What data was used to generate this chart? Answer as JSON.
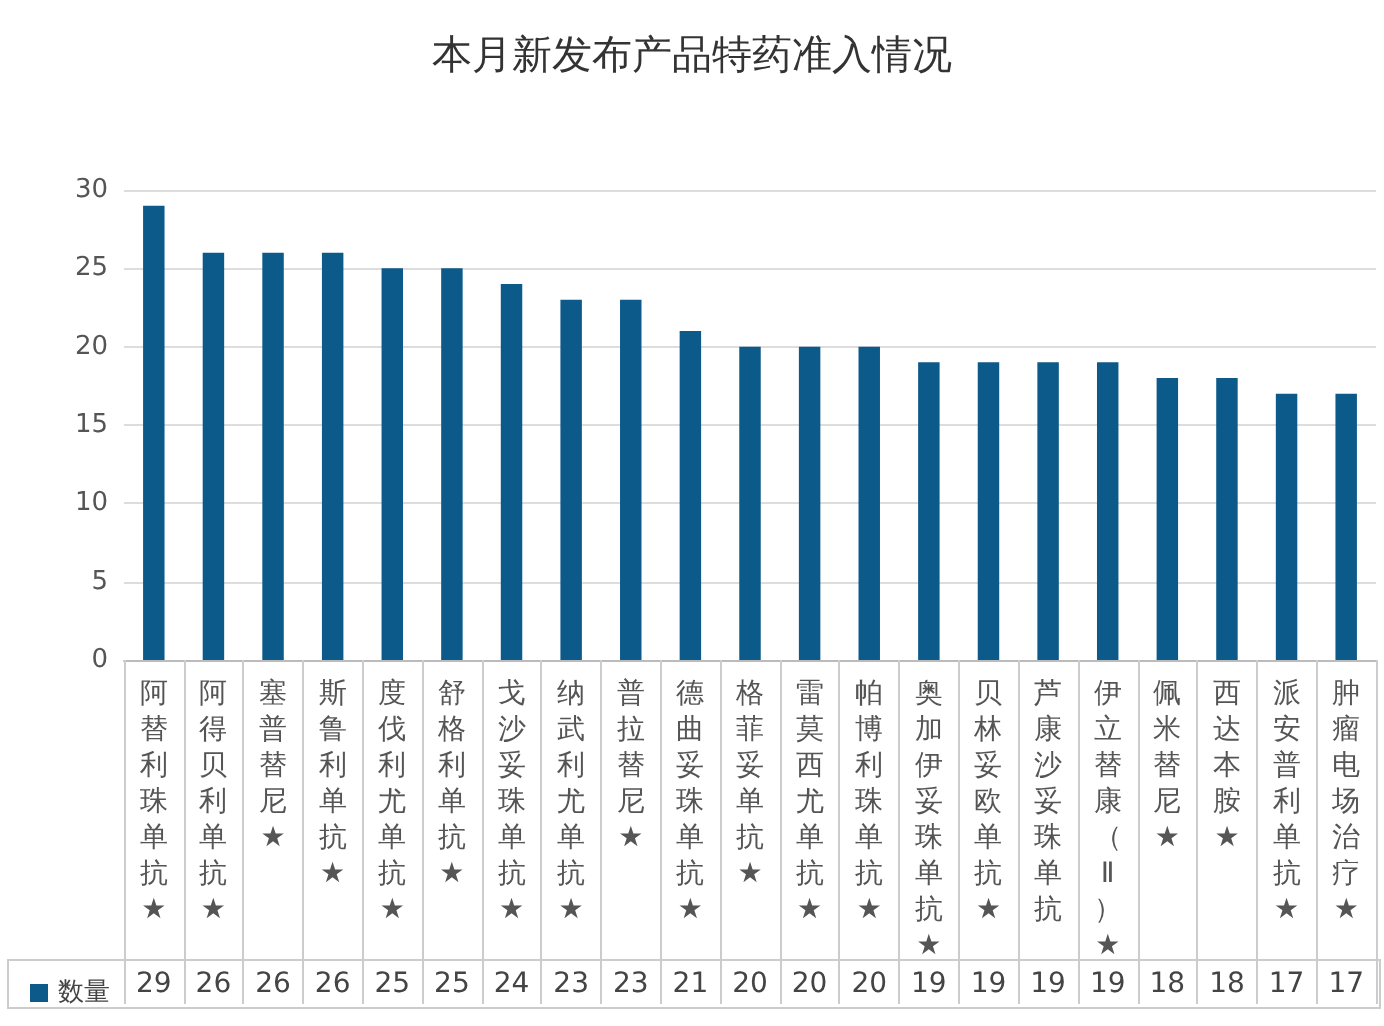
{
  "chart_data": {
    "type": "bar",
    "title": "本月新发布产品特药准入情况",
    "categories": [
      "阿替利珠单抗★",
      "阿得贝利单抗★",
      "塞普替尼★",
      "斯鲁利单抗★",
      "度伐利尤单抗★",
      "舒格利单抗★",
      "戈沙妥珠单抗★",
      "纳武利尤单抗★",
      "普拉替尼★",
      "德曲妥珠单抗★",
      "格菲妥单抗★",
      "雷莫西尤单抗★",
      "帕博利珠单抗★",
      "奥加伊妥珠单抗★",
      "贝林妥欧单抗★",
      "芦康沙妥珠单抗",
      "伊立替康（Ⅱ）★",
      "佩米替尼★",
      "西达本胺★",
      "派安普利单抗★",
      "肿瘤电场治疗★"
    ],
    "series": [
      {
        "name": "数量",
        "color": "#0b5a8a",
        "values": [
          29,
          26,
          26,
          26,
          25,
          25,
          24,
          23,
          23,
          21,
          20,
          20,
          20,
          19,
          19,
          19,
          19,
          18,
          18,
          17,
          17
        ]
      }
    ],
    "ylim": [
      0,
      30
    ],
    "yticks": [
      0,
      5,
      10,
      15,
      20,
      25,
      30
    ],
    "grid": "y",
    "legend": "bottom left",
    "data_labels": true
  }
}
